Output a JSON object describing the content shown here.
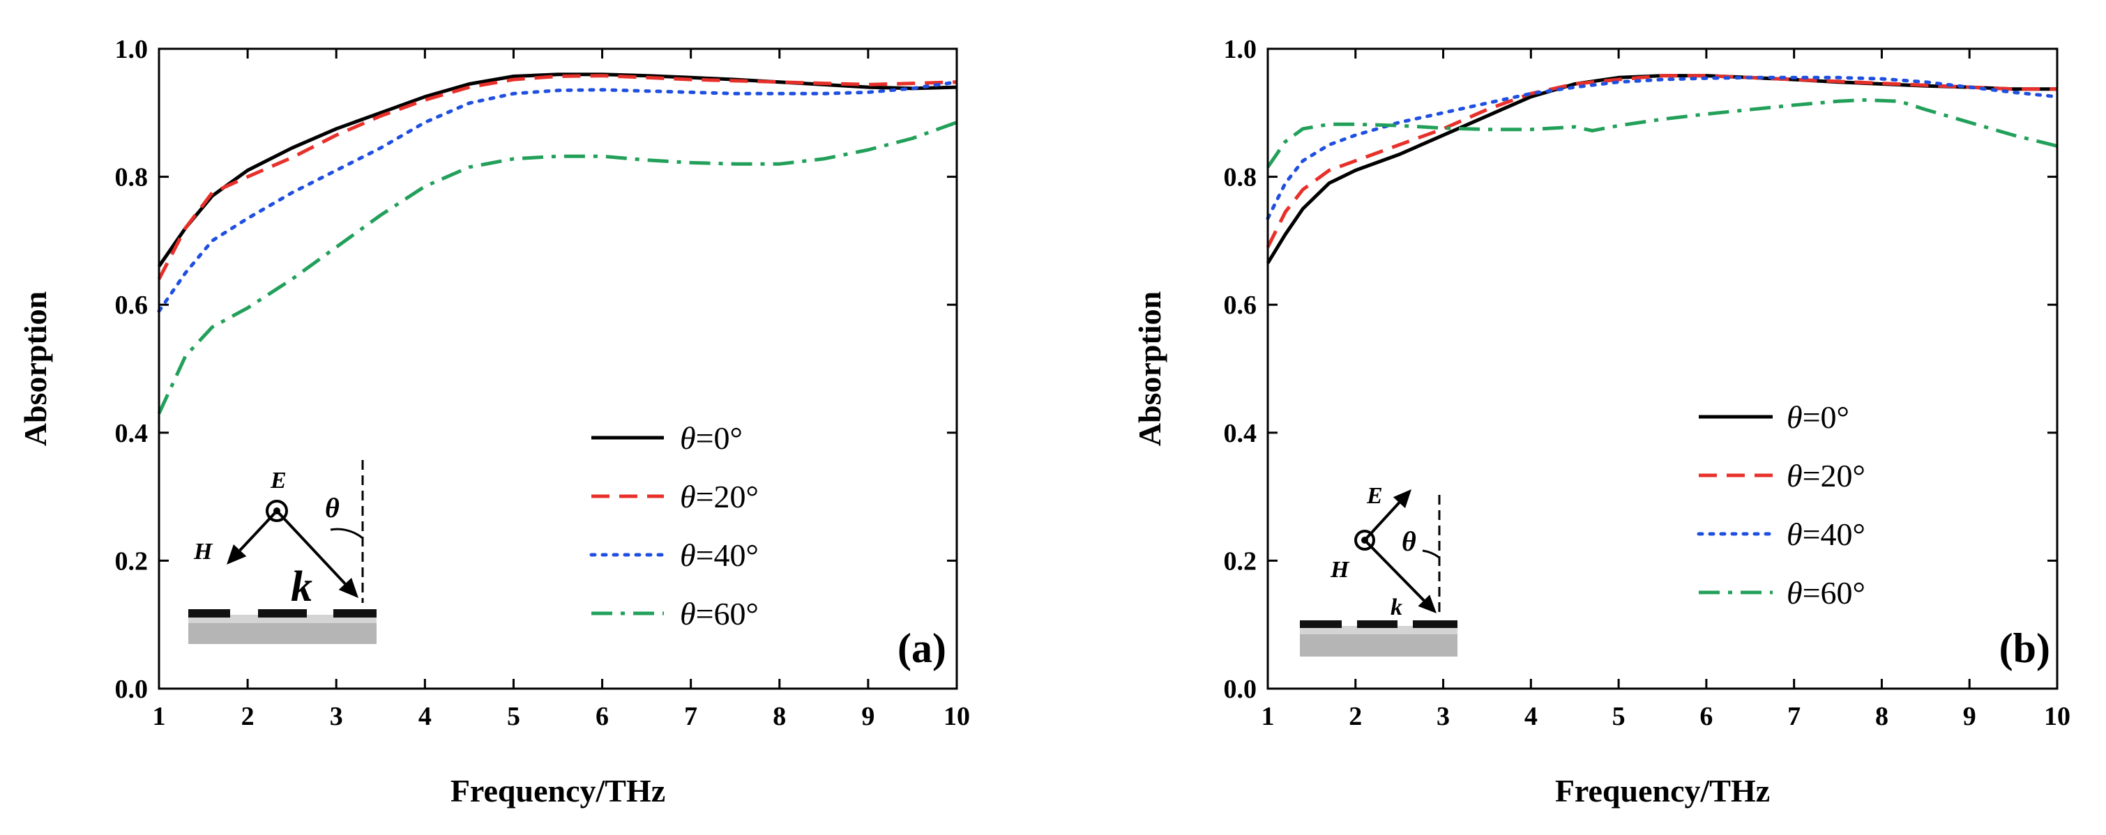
{
  "chart_data": [
    {
      "type": "line",
      "panel_label": "(a)",
      "xlabel": "Frequency/THz",
      "ylabel": "Absorption",
      "xlim": [
        1,
        10
      ],
      "ylim": [
        0,
        1
      ],
      "xticks": [
        "1",
        "2",
        "3",
        "4",
        "5",
        "6",
        "7",
        "8",
        "9",
        "10"
      ],
      "yticks": [
        "0.0",
        "0.2",
        "0.4",
        "0.6",
        "0.8",
        "1.0"
      ],
      "legend_position": "lower-right",
      "legend_symbol": "θ",
      "inset": {
        "E": "E",
        "H": "H",
        "k": "k",
        "theta": "θ"
      },
      "series": [
        {
          "name": "=0°",
          "style": "solid",
          "color": "#000000",
          "x": [
            1,
            1.3,
            1.6,
            2,
            2.5,
            3,
            3.5,
            4,
            4.5,
            5,
            5.5,
            6,
            6.5,
            7,
            7.5,
            8,
            8.5,
            9,
            9.5,
            10
          ],
          "y": [
            0.66,
            0.72,
            0.77,
            0.81,
            0.845,
            0.875,
            0.9,
            0.925,
            0.945,
            0.957,
            0.96,
            0.96,
            0.958,
            0.955,
            0.952,
            0.948,
            0.944,
            0.94,
            0.938,
            0.94
          ]
        },
        {
          "name": "=20°",
          "style": "dashed",
          "color": "#e8302a",
          "x": [
            1,
            1.3,
            1.6,
            2,
            2.5,
            3,
            3.5,
            4,
            4.5,
            5,
            5.5,
            6,
            6.5,
            7,
            7.5,
            8,
            8.5,
            9,
            9.5,
            10
          ],
          "y": [
            0.64,
            0.72,
            0.775,
            0.8,
            0.83,
            0.865,
            0.895,
            0.92,
            0.94,
            0.952,
            0.957,
            0.958,
            0.955,
            0.952,
            0.95,
            0.948,
            0.946,
            0.944,
            0.946,
            0.948
          ]
        },
        {
          "name": "=40°",
          "style": "dotted",
          "color": "#1f4fe0",
          "x": [
            1,
            1.3,
            1.6,
            2,
            2.5,
            3,
            3.5,
            4,
            4.5,
            5,
            5.5,
            6,
            6.5,
            7,
            7.5,
            8,
            8.5,
            9,
            9.5,
            10
          ],
          "y": [
            0.59,
            0.65,
            0.7,
            0.735,
            0.775,
            0.81,
            0.845,
            0.885,
            0.915,
            0.93,
            0.935,
            0.936,
            0.934,
            0.932,
            0.93,
            0.93,
            0.93,
            0.932,
            0.938,
            0.948
          ]
        },
        {
          "name": "=60°",
          "style": "dashdot",
          "color": "#22a05a",
          "x": [
            1,
            1.3,
            1.6,
            2,
            2.5,
            3,
            3.5,
            4,
            4.5,
            5,
            5.5,
            6,
            6.5,
            7,
            7.5,
            8,
            8.5,
            9,
            9.5,
            10
          ],
          "y": [
            0.43,
            0.52,
            0.565,
            0.595,
            0.64,
            0.69,
            0.74,
            0.785,
            0.815,
            0.828,
            0.832,
            0.832,
            0.826,
            0.822,
            0.82,
            0.82,
            0.828,
            0.842,
            0.86,
            0.885
          ]
        }
      ]
    },
    {
      "type": "line",
      "panel_label": "(b)",
      "xlabel": "Frequency/THz",
      "ylabel": "Absorption",
      "xlim": [
        1,
        10
      ],
      "ylim": [
        0,
        1
      ],
      "xticks": [
        "1",
        "2",
        "3",
        "4",
        "5",
        "6",
        "7",
        "8",
        "9",
        "10"
      ],
      "yticks": [
        "0.0",
        "0.2",
        "0.4",
        "0.6",
        "0.8",
        "1.0"
      ],
      "legend_position": "right",
      "legend_symbol": "θ",
      "inset": {
        "E": "E",
        "H": "H",
        "k": "k",
        "theta": "θ"
      },
      "series": [
        {
          "name": "=0°",
          "style": "solid",
          "color": "#000000",
          "x": [
            1,
            1.2,
            1.4,
            1.7,
            2,
            2.5,
            3,
            3.5,
            4,
            4.5,
            5,
            5.5,
            6,
            6.5,
            7,
            7.5,
            8,
            8.5,
            9,
            9.5,
            10
          ],
          "y": [
            0.665,
            0.71,
            0.75,
            0.79,
            0.81,
            0.835,
            0.865,
            0.895,
            0.925,
            0.945,
            0.955,
            0.958,
            0.958,
            0.955,
            0.952,
            0.948,
            0.945,
            0.942,
            0.94,
            0.937,
            0.937
          ]
        },
        {
          "name": "=20°",
          "style": "dashed",
          "color": "#e8302a",
          "x": [
            1,
            1.2,
            1.4,
            1.7,
            2,
            2.5,
            3,
            3.5,
            4,
            4.5,
            5,
            5.5,
            6,
            6.5,
            7,
            7.5,
            8,
            8.5,
            9,
            9.5,
            10
          ],
          "y": [
            0.69,
            0.745,
            0.78,
            0.81,
            0.825,
            0.85,
            0.875,
            0.905,
            0.93,
            0.945,
            0.952,
            0.958,
            0.958,
            0.955,
            0.952,
            0.949,
            0.946,
            0.943,
            0.94,
            0.937,
            0.937
          ]
        },
        {
          "name": "=40°",
          "style": "dotted",
          "color": "#1f4fe0",
          "x": [
            1,
            1.2,
            1.4,
            1.7,
            2,
            2.5,
            3,
            3.5,
            4,
            4.5,
            5,
            5.5,
            6,
            6.5,
            7,
            7.5,
            8,
            8.5,
            9,
            9.5,
            10
          ],
          "y": [
            0.735,
            0.79,
            0.825,
            0.85,
            0.865,
            0.885,
            0.9,
            0.915,
            0.93,
            0.94,
            0.948,
            0.952,
            0.954,
            0.955,
            0.955,
            0.955,
            0.953,
            0.948,
            0.94,
            0.932,
            0.925
          ]
        },
        {
          "name": "=60°",
          "style": "dashdot",
          "color": "#22a05a",
          "x": [
            1,
            1.2,
            1.4,
            1.7,
            2,
            2.5,
            3,
            3.5,
            4,
            4.5,
            4.7,
            5,
            5.5,
            6,
            6.5,
            7,
            7.5,
            7.8,
            8.2,
            8.5,
            9,
            9.5,
            10
          ],
          "y": [
            0.815,
            0.855,
            0.875,
            0.882,
            0.882,
            0.88,
            0.876,
            0.874,
            0.874,
            0.878,
            0.872,
            0.88,
            0.89,
            0.898,
            0.905,
            0.912,
            0.918,
            0.92,
            0.918,
            0.905,
            0.885,
            0.865,
            0.848
          ]
        }
      ]
    }
  ]
}
